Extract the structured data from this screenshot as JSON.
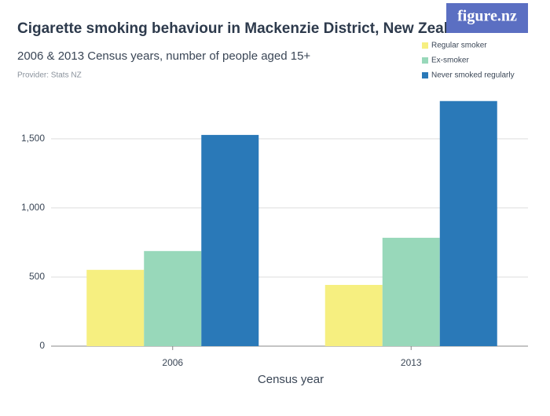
{
  "chart_data": {
    "type": "bar",
    "title": "Cigarette smoking behaviour in Mackenzie District, New Zealand",
    "subtitle": "2006 & 2013 Census years, number of people aged 15+",
    "provider": "Provider: Stats NZ",
    "logo": "figure.nz",
    "x_label": "Census year",
    "categories": [
      "2006",
      "2013"
    ],
    "series": [
      {
        "name": "Regular smoker",
        "color": "#f6ef80",
        "values": [
          552,
          443
        ]
      },
      {
        "name": "Ex-smoker",
        "color": "#98d8ba",
        "values": [
          688,
          784
        ]
      },
      {
        "name": "Never smoked regularly",
        "color": "#2a79b8",
        "values": [
          1528,
          1773
        ]
      }
    ],
    "ylim": [
      0,
      1800
    ],
    "yticks": [
      0,
      500,
      {
        "value": 1000,
        "label": "1,000"
      },
      {
        "value": 1500,
        "label": "1,500"
      }
    ],
    "grid": true,
    "legend": "top-right"
  }
}
